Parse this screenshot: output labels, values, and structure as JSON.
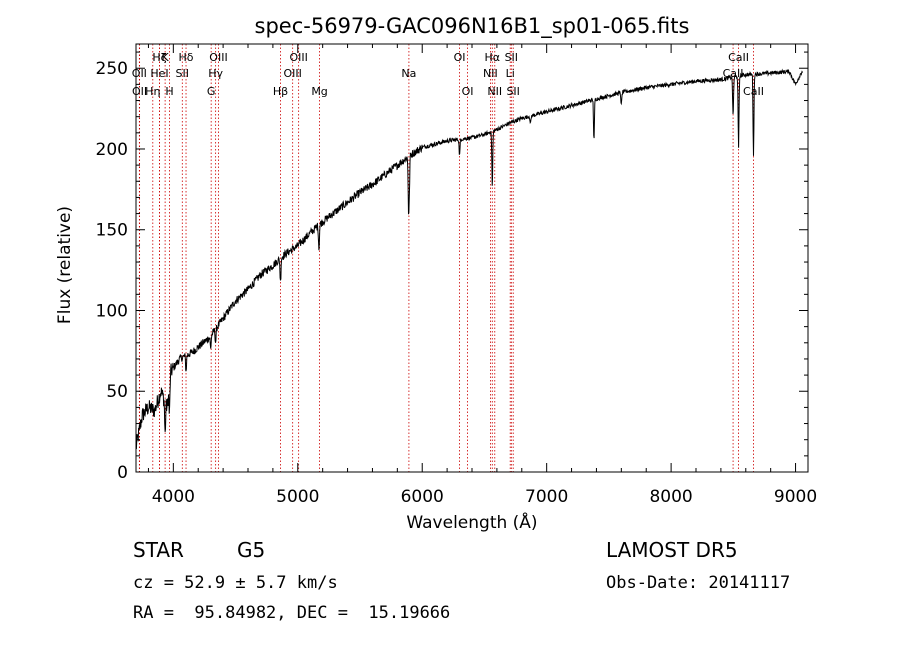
{
  "chart_data": {
    "type": "line",
    "title": "spec-56979-GAC096N16B1_sp01-065.fits",
    "xlabel": "Wavelength (Å)",
    "ylabel": "Flux (relative)",
    "xlim": [
      3700,
      9100
    ],
    "ylim": [
      0,
      265
    ],
    "xticks": [
      4000,
      5000,
      6000,
      7000,
      8000,
      9000
    ],
    "yticks": [
      0,
      50,
      100,
      150,
      200,
      250
    ],
    "grid": false,
    "line_color": "#000000",
    "marker_color": "#cc0000",
    "continuum": [
      [
        3700,
        15
      ],
      [
        3750,
        35
      ],
      [
        3800,
        40
      ],
      [
        3850,
        38
      ],
      [
        3900,
        50
      ],
      [
        3950,
        40
      ],
      [
        3980,
        62
      ],
      [
        4050,
        70
      ],
      [
        4150,
        74
      ],
      [
        4300,
        84
      ],
      [
        4400,
        95
      ],
      [
        4500,
        106
      ],
      [
        4600,
        113
      ],
      [
        4700,
        122
      ],
      [
        4800,
        128
      ],
      [
        4900,
        135
      ],
      [
        5000,
        140
      ],
      [
        5100,
        148
      ],
      [
        5200,
        155
      ],
      [
        5300,
        161
      ],
      [
        5400,
        167
      ],
      [
        5500,
        173
      ],
      [
        5600,
        178
      ],
      [
        5700,
        184
      ],
      [
        5800,
        190
      ],
      [
        5900,
        196
      ],
      [
        6000,
        201
      ],
      [
        6100,
        203
      ],
      [
        6200,
        205
      ],
      [
        6300,
        206
      ],
      [
        6400,
        207
      ],
      [
        6500,
        209
      ],
      [
        6600,
        212
      ],
      [
        6700,
        216
      ],
      [
        6800,
        219
      ],
      [
        7000,
        223
      ],
      [
        7200,
        227
      ],
      [
        7400,
        231
      ],
      [
        7600,
        235
      ],
      [
        7800,
        238
      ],
      [
        8000,
        240
      ],
      [
        8200,
        242
      ],
      [
        8400,
        243
      ],
      [
        8600,
        246
      ],
      [
        8800,
        247
      ],
      [
        8950,
        248
      ],
      [
        9000,
        240
      ],
      [
        9050,
        248
      ]
    ],
    "absorption_features": [
      [
        3934,
        20
      ],
      [
        3969,
        18
      ],
      [
        4102,
        10
      ],
      [
        4300,
        8
      ],
      [
        4340,
        8
      ],
      [
        4861,
        15
      ],
      [
        5170,
        15
      ],
      [
        5890,
        30
      ],
      [
        5896,
        20
      ],
      [
        6300,
        10
      ],
      [
        6563,
        35
      ],
      [
        6870,
        5
      ],
      [
        7600,
        8
      ],
      [
        7380,
        25
      ],
      [
        8498,
        25
      ],
      [
        8542,
        45
      ],
      [
        8662,
        50
      ]
    ],
    "line_markers": [
      {
        "wavelength": 3835,
        "label": "Hη",
        "row": 3
      },
      {
        "wavelength": 3727,
        "label": "OII",
        "row": 2
      },
      {
        "wavelength": 3729,
        "label": "OII",
        "row": 3
      },
      {
        "wavelength": 3889,
        "label": "Hζ",
        "row": 1
      },
      {
        "wavelength": 3889,
        "label": "HeI",
        "row": 2
      },
      {
        "wavelength": 3934,
        "label": "K",
        "row": 1
      },
      {
        "wavelength": 3969,
        "label": "H",
        "row": 3
      },
      {
        "wavelength": 4072,
        "label": "SII",
        "row": 2
      },
      {
        "wavelength": 4102,
        "label": "Hδ",
        "row": 1
      },
      {
        "wavelength": 4304,
        "label": "G",
        "row": 3
      },
      {
        "wavelength": 4340,
        "label": "Hγ",
        "row": 2
      },
      {
        "wavelength": 4363,
        "label": "OIII",
        "row": 1
      },
      {
        "wavelength": 4861,
        "label": "Hβ",
        "row": 3
      },
      {
        "wavelength": 4959,
        "label": "OIII",
        "row": 2
      },
      {
        "wavelength": 5007,
        "label": "OIII",
        "row": 1
      },
      {
        "wavelength": 5175,
        "label": "Mg",
        "row": 3
      },
      {
        "wavelength": 5893,
        "label": "Na",
        "row": 2
      },
      {
        "wavelength": 6300,
        "label": "OI",
        "row": 1
      },
      {
        "wavelength": 6364,
        "label": "OI",
        "row": 3
      },
      {
        "wavelength": 6548,
        "label": "NII",
        "row": 2
      },
      {
        "wavelength": 6563,
        "label": "Hα",
        "row": 1
      },
      {
        "wavelength": 6583,
        "label": "NII",
        "row": 3
      },
      {
        "wavelength": 6707,
        "label": "Li",
        "row": 2
      },
      {
        "wavelength": 6716,
        "label": "SII",
        "row": 1
      },
      {
        "wavelength": 6731,
        "label": "SII",
        "row": 3
      },
      {
        "wavelength": 8498,
        "label": "CaII",
        "row": 2
      },
      {
        "wavelength": 8542,
        "label": "CaII",
        "row": 1
      },
      {
        "wavelength": 8662,
        "label": "CaII",
        "row": 3
      }
    ]
  },
  "info": {
    "object_class": "STAR",
    "subclass": "G5",
    "redshift": "cz = 52.9 ± 5.7 km/s",
    "coords": "RA =  95.84982, DEC =  15.19666",
    "survey": "LAMOST DR5",
    "obs_date": "Obs-Date: 20141117"
  }
}
